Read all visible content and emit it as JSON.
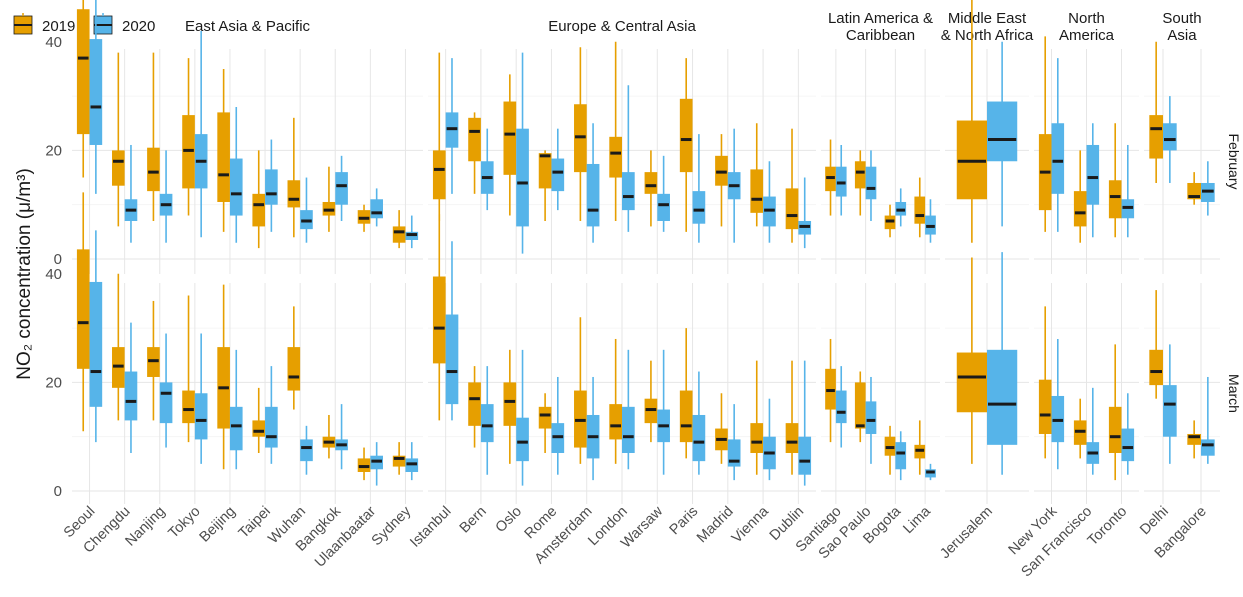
{
  "colors": {
    "y2019": "#E69F00",
    "y2020": "#56B4E9"
  },
  "chart_data": {
    "type": "boxplot",
    "ylabel": "NO₂ concentration (μ/m³)",
    "y_ticks": [
      0,
      20,
      40
    ],
    "legend": {
      "placement": "top-left",
      "entries": [
        "2019",
        "2020"
      ]
    },
    "facets_rows": [
      "February",
      "March"
    ],
    "regions": [
      {
        "name": "East Asia & Pacific",
        "cities": [
          "Seoul",
          "Chengdu",
          "Nanjing",
          "Tokyo",
          "Beijing",
          "Taipei",
          "Wuhan",
          "Bangkok",
          "Ulaanbaatar",
          "Sydney"
        ]
      },
      {
        "name": "Europe & Central Asia",
        "cities": [
          "Istanbul",
          "Bern",
          "Oslo",
          "Rome",
          "Amsterdam",
          "London",
          "Warsaw",
          "Paris",
          "Madrid",
          "Vienna",
          "Dublin"
        ]
      },
      {
        "name": "Latin America & Caribbean",
        "cities": [
          "Santiago",
          "Sao Paulo",
          "Bogota",
          "Lima"
        ]
      },
      {
        "name": "Middle East & North Africa",
        "cities": [
          "Jerusalem"
        ]
      },
      {
        "name": "North America",
        "cities": [
          "New York",
          "San Francisco",
          "Toronto"
        ]
      },
      {
        "name": "South Asia",
        "cities": [
          "Delhi",
          "Bangalore"
        ]
      }
    ],
    "stats_format": "[min, q1, median, q3, max]",
    "series": [
      {
        "name": "2019",
        "February": {
          "Seoul": [
            15,
            23,
            37,
            46,
            52
          ],
          "Chengdu": [
            6,
            13.5,
            18,
            20,
            38
          ],
          "Nanjing": [
            7,
            12.5,
            16,
            20.5,
            38
          ],
          "Tokyo": [
            8,
            13,
            20,
            26.5,
            37
          ],
          "Beijing": [
            5,
            10.5,
            15.5,
            27,
            35
          ],
          "Taipei": [
            2,
            6,
            10,
            12,
            20
          ],
          "Wuhan": [
            4,
            9.5,
            11,
            14.5,
            26
          ],
          "Bangkok": [
            5,
            8,
            9,
            10.5,
            17
          ],
          "Ulaanbaatar": [
            5,
            6.5,
            7.5,
            9,
            10
          ],
          "Sydney": [
            2,
            3,
            5,
            6,
            9
          ],
          "Istanbul": [
            7,
            11,
            16.5,
            20,
            38
          ],
          "Bern": [
            12,
            18,
            23.5,
            26,
            27
          ],
          "Oslo": [
            8,
            15.5,
            23,
            29,
            34
          ],
          "Rome": [
            7,
            13,
            19,
            19.5,
            20
          ],
          "Amsterdam": [
            7,
            16,
            22.5,
            28.5,
            39
          ],
          "London": [
            7,
            15,
            19.5,
            22.5,
            40
          ],
          "Warsaw": [
            6,
            12,
            13.5,
            16,
            20
          ],
          "Paris": [
            5,
            16,
            22,
            29.5,
            37
          ],
          "Madrid": [
            6,
            13.5,
            16,
            19,
            23
          ],
          "Vienna": [
            6,
            8.5,
            11,
            16.5,
            25
          ],
          "Dublin": [
            3,
            5.5,
            8,
            13,
            24
          ],
          "Santiago": [
            8,
            12.5,
            15,
            17,
            22
          ],
          "Sao Paulo": [
            8,
            13,
            16,
            18,
            20
          ],
          "Bogota": [
            4,
            5.5,
            7,
            8,
            10
          ],
          "Lima": [
            4,
            6.5,
            8,
            11.5,
            15
          ],
          "Jerusalem": [
            3,
            11,
            18,
            25.5,
            49
          ],
          "New York": [
            5,
            9,
            16,
            23,
            41
          ],
          "San Francisco": [
            3,
            6,
            8.5,
            12.5,
            20
          ],
          "Toronto": [
            4,
            7.5,
            11.5,
            14.5,
            25
          ],
          "Delhi": [
            14,
            18.5,
            24,
            26.5,
            40
          ],
          "Bangalore": [
            10,
            11,
            11.5,
            14,
            16
          ]
        },
        "March": {
          "Seoul": [
            11,
            22.5,
            31,
            44.5,
            55
          ],
          "Chengdu": [
            13,
            19,
            23,
            26.5,
            40
          ],
          "Nanjing": [
            13,
            21,
            24,
            26.5,
            35
          ],
          "Tokyo": [
            9,
            12.5,
            15,
            18.5,
            36
          ],
          "Beijing": [
            4,
            11.5,
            19,
            26.5,
            38
          ],
          "Taipei": [
            7,
            10,
            11,
            13,
            19
          ],
          "Wuhan": [
            15,
            18.5,
            21,
            26.5,
            34
          ],
          "Bangkok": [
            6,
            8,
            9,
            10,
            14
          ],
          "Ulaanbaatar": [
            2,
            3.5,
            4.5,
            6,
            8
          ],
          "Sydney": [
            3,
            4.5,
            6,
            6.5,
            9
          ],
          "Istanbul": [
            13,
            23.5,
            30,
            39.5,
            51
          ],
          "Bern": [
            8,
            12,
            17,
            20,
            23
          ],
          "Oslo": [
            5,
            12,
            16.5,
            20,
            26
          ],
          "Rome": [
            7,
            11.5,
            14,
            15.5,
            18
          ],
          "Amsterdam": [
            5,
            8,
            13,
            18.5,
            32
          ],
          "London": [
            5,
            9.5,
            12,
            16,
            28
          ],
          "Warsaw": [
            9,
            12.5,
            15,
            17,
            24
          ],
          "Paris": [
            6,
            9,
            12,
            18.5,
            30
          ],
          "Madrid": [
            5,
            7.5,
            9.5,
            11.5,
            18
          ],
          "Vienna": [
            3,
            7,
            9,
            12.5,
            24
          ],
          "Dublin": [
            3,
            7,
            9,
            12.5,
            24
          ],
          "Santiago": [
            9,
            15,
            18.5,
            22.5,
            28
          ],
          "Sao Paulo": [
            9,
            11.5,
            12,
            20,
            22
          ],
          "Bogota": [
            3,
            6.5,
            8,
            10,
            12
          ],
          "Lima": [
            3,
            6,
            7.5,
            8.5,
            13
          ],
          "Jerusalem": [
            5,
            14.5,
            21,
            25.5,
            43
          ],
          "New York": [
            6,
            10.5,
            14,
            20.5,
            34
          ],
          "San Francisco": [
            6,
            8.5,
            11,
            13,
            17
          ],
          "Toronto": [
            2,
            7,
            10,
            15.5,
            27
          ],
          "Delhi": [
            17,
            19.5,
            22,
            26,
            37
          ],
          "Bangalore": [
            6,
            8.5,
            10,
            10.5,
            13
          ]
        }
      },
      {
        "name": "2020",
        "February": {
          "Seoul": [
            12,
            21,
            28,
            40.5,
            53
          ],
          "Chengdu": [
            3,
            7,
            9,
            11,
            21
          ],
          "Nanjing": [
            3,
            8,
            10,
            12,
            20
          ],
          "Tokyo": [
            4,
            13,
            18,
            23,
            42
          ],
          "Beijing": [
            3,
            8,
            12,
            18.5,
            28
          ],
          "Taipei": [
            5,
            10,
            12,
            16.5,
            22
          ],
          "Wuhan": [
            3,
            5.5,
            7,
            9,
            15
          ],
          "Bangkok": [
            7,
            10,
            13.5,
            16,
            19
          ],
          "Ulaanbaatar": [
            6,
            7.5,
            8.5,
            11,
            13
          ],
          "Sydney": [
            2,
            3.5,
            4.5,
            5,
            8
          ],
          "Istanbul": [
            12,
            20.5,
            24,
            27,
            37
          ],
          "Bern": [
            9,
            12,
            15,
            18,
            24
          ],
          "Oslo": [
            1,
            6,
            14,
            24,
            38
          ],
          "Rome": [
            9,
            12.5,
            16,
            18.5,
            24
          ],
          "Amsterdam": [
            3,
            6,
            9,
            17.5,
            25
          ],
          "London": [
            5,
            9,
            11.5,
            16,
            32
          ],
          "Warsaw": [
            5,
            7,
            10,
            12,
            19
          ],
          "Paris": [
            3,
            6.5,
            9,
            12.5,
            23
          ],
          "Madrid": [
            3,
            11,
            13.5,
            16,
            24
          ],
          "Vienna": [
            3,
            6,
            9,
            11.5,
            18
          ],
          "Dublin": [
            2,
            4.5,
            6,
            7,
            15
          ],
          "Santiago": [
            8,
            11.5,
            14,
            17,
            21
          ],
          "Sao Paulo": [
            7,
            11,
            13,
            17,
            20
          ],
          "Bogota": [
            6,
            8,
            9,
            10.5,
            13
          ],
          "Lima": [
            3,
            4.5,
            6,
            8,
            11
          ],
          "Jerusalem": [
            6,
            18,
            22,
            29,
            40
          ],
          "New York": [
            5,
            12,
            18,
            25,
            37
          ],
          "San Francisco": [
            4,
            10,
            15,
            21,
            25
          ],
          "Toronto": [
            4,
            7.5,
            9.5,
            11,
            21
          ],
          "Delhi": [
            14,
            20,
            22,
            25,
            30
          ],
          "Bangalore": [
            8,
            10.5,
            12.5,
            14,
            18
          ]
        },
        "March": {
          "Seoul": [
            9,
            15.5,
            22,
            38.5,
            48
          ],
          "Chengdu": [
            7,
            13,
            16.5,
            22,
            31
          ],
          "Nanjing": [
            8,
            12.5,
            18,
            20,
            29
          ],
          "Tokyo": [
            5,
            9.5,
            13,
            18,
            29
          ],
          "Beijing": [
            4,
            7.5,
            12,
            15.5,
            26
          ],
          "Taipei": [
            5,
            8,
            10,
            15.5,
            23
          ],
          "Wuhan": [
            3,
            5.5,
            8,
            9.5,
            12
          ],
          "Bangkok": [
            4,
            7.5,
            8.5,
            9.5,
            16
          ],
          "Ulaanbaatar": [
            1,
            4,
            5.5,
            6.5,
            9
          ],
          "Sydney": [
            2,
            3.5,
            5,
            6,
            9
          ],
          "Istanbul": [
            13,
            16,
            22,
            32.5,
            46
          ],
          "Bern": [
            3,
            9,
            12,
            16,
            23
          ],
          "Oslo": [
            1,
            5.5,
            9,
            13.5,
            26
          ],
          "Rome": [
            3,
            7,
            10,
            12.5,
            21
          ],
          "Amsterdam": [
            2,
            6,
            10,
            14,
            21
          ],
          "London": [
            4,
            7,
            10,
            15.5,
            26
          ],
          "Warsaw": [
            3,
            9,
            12,
            15,
            26
          ],
          "Paris": [
            3,
            5.5,
            9,
            14,
            22
          ],
          "Madrid": [
            2,
            4.5,
            5.5,
            9.5,
            16
          ],
          "Vienna": [
            2,
            4,
            7,
            10,
            17
          ],
          "Dublin": [
            1,
            3,
            5.5,
            10,
            24
          ],
          "Santiago": [
            8,
            12.5,
            14.5,
            18.5,
            23
          ],
          "Sao Paulo": [
            5,
            10.5,
            13,
            16.5,
            21
          ],
          "Bogota": [
            2,
            4,
            7,
            9,
            11
          ],
          "Lima": [
            2,
            2.5,
            3.5,
            4,
            5
          ],
          "Jerusalem": [
            3,
            8.5,
            16,
            26,
            44
          ],
          "New York": [
            4,
            9,
            13,
            17.5,
            28
          ],
          "San Francisco": [
            3,
            5,
            7,
            9,
            19
          ],
          "Toronto": [
            3,
            5.5,
            8,
            11.5,
            18
          ],
          "Delhi": [
            5,
            10,
            16,
            19.5,
            27
          ],
          "Bangalore": [
            5,
            6.5,
            8.5,
            9.5,
            21
          ]
        }
      }
    ]
  }
}
